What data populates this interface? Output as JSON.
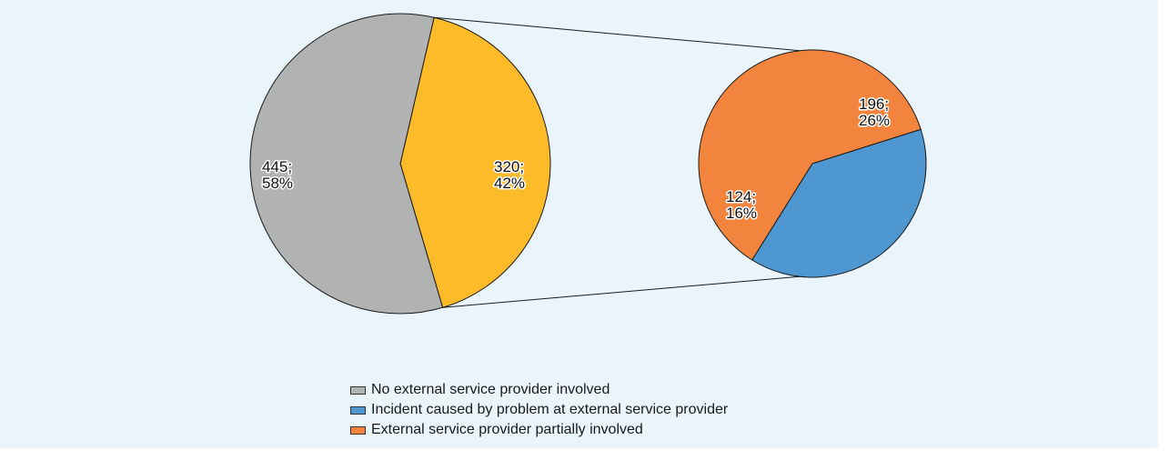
{
  "chart_data": {
    "type": "pie",
    "subtype": "pie-of-pie",
    "main_pie": {
      "slices": [
        {
          "key": "none",
          "value": 445,
          "percent": "58%",
          "color": "#b1b3b3",
          "label_line1": "445;",
          "label_line2": "58%"
        },
        {
          "key": "external",
          "value": 320,
          "percent": "42%",
          "color": "#fdbb2a",
          "label_line1": "320;",
          "label_line2": "42%"
        }
      ]
    },
    "secondary_pie": {
      "slices": [
        {
          "key": "partially",
          "value": 196,
          "percent": "26%",
          "color": "#f2843e",
          "label_line1": "196;",
          "label_line2": "26%"
        },
        {
          "key": "caused",
          "value": 124,
          "percent": "16%",
          "color": "#4f97d1",
          "label_line1": "124;",
          "label_line2": "16%"
        }
      ]
    },
    "legend": [
      {
        "label": "No external service provider involved",
        "color": "#b1b3b3"
      },
      {
        "label": "Incident caused by problem at external service provider",
        "color": "#4f97d1"
      },
      {
        "label": "External service provider partially involved",
        "color": "#f2843e"
      }
    ],
    "legend_position": "bottom-center"
  }
}
